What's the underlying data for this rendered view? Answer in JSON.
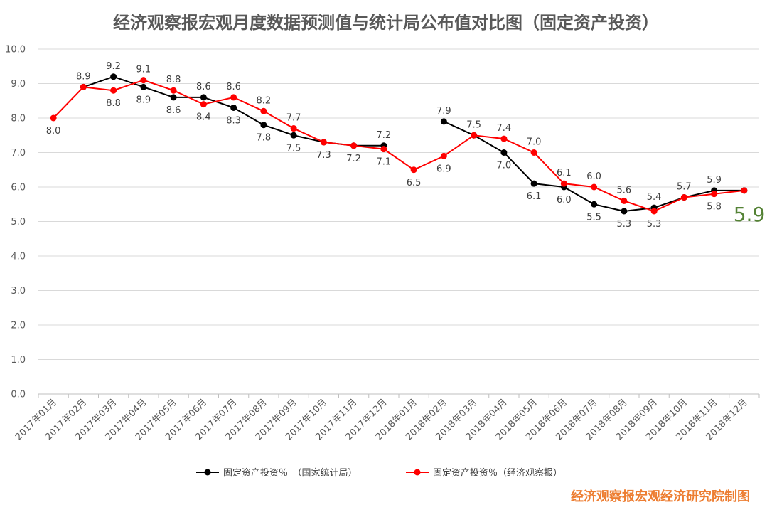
{
  "chart_data": {
    "type": "line",
    "title": "经济观察报宏观月度数据预测值与统计局公布值对比图（固定资产投资）",
    "credit": "经济观察报宏观经济研究院制图",
    "highlight_value": "5.9",
    "ylim": [
      0,
      10
    ],
    "yticks": [
      "0.0",
      "1.0",
      "2.0",
      "3.0",
      "4.0",
      "5.0",
      "6.0",
      "7.0",
      "8.0",
      "9.0",
      "10.0"
    ],
    "grid": true,
    "legend_position": "bottom",
    "categories": [
      "2017年01月",
      "2017年02月",
      "2017年03月",
      "2017年04月",
      "2017年05月",
      "2017年06月",
      "2017年07月",
      "2017年08月",
      "2017年09月",
      "2017年10月",
      "2017年11月",
      "2017年12月",
      "2018年01月",
      "2018年02月",
      "2018年03月",
      "2018年04月",
      "2018年05月",
      "2018年06月",
      "2018年07月",
      "2018年08月",
      "2018年09月",
      "2018年10月",
      "2018年11月",
      "2018年12月"
    ],
    "series": [
      {
        "name": "固定资产投资％　（国家统计局）",
        "color": "#000000",
        "values": [
          null,
          8.9,
          9.2,
          8.9,
          8.6,
          8.6,
          8.3,
          7.8,
          7.5,
          7.3,
          7.2,
          7.2,
          null,
          7.9,
          7.5,
          7.0,
          6.1,
          6.0,
          5.5,
          5.3,
          5.4,
          5.7,
          5.9,
          5.9
        ]
      },
      {
        "name": "固定资产投资％（经济观察报）",
        "color": "#ff0000",
        "values": [
          8.0,
          8.9,
          8.8,
          9.1,
          8.8,
          8.4,
          8.6,
          8.2,
          7.7,
          7.3,
          7.2,
          7.1,
          6.5,
          6.9,
          7.5,
          7.4,
          7.0,
          6.1,
          6.0,
          5.6,
          5.3,
          5.7,
          5.8,
          5.9
        ]
      }
    ],
    "data_labels": [
      {
        "text": "8.0",
        "cat": 0,
        "val": 8.0,
        "pos": "below"
      },
      {
        "text": "8.9",
        "cat": 1,
        "val": 8.9,
        "pos": "above"
      },
      {
        "text": "9.2",
        "cat": 2,
        "val": 9.2,
        "pos": "above"
      },
      {
        "text": "8.8",
        "cat": 2,
        "val": 8.8,
        "pos": "below"
      },
      {
        "text": "9.1",
        "cat": 3,
        "val": 9.1,
        "pos": "above"
      },
      {
        "text": "8.9",
        "cat": 3,
        "val": 8.9,
        "pos": "below"
      },
      {
        "text": "8.8",
        "cat": 4,
        "val": 8.8,
        "pos": "above"
      },
      {
        "text": "8.6",
        "cat": 4,
        "val": 8.6,
        "pos": "below"
      },
      {
        "text": "8.6",
        "cat": 5,
        "val": 8.6,
        "pos": "above"
      },
      {
        "text": "8.4",
        "cat": 5,
        "val": 8.4,
        "pos": "below"
      },
      {
        "text": "8.6",
        "cat": 6,
        "val": 8.6,
        "pos": "above"
      },
      {
        "text": "8.3",
        "cat": 6,
        "val": 8.3,
        "pos": "below"
      },
      {
        "text": "8.2",
        "cat": 7,
        "val": 8.2,
        "pos": "above"
      },
      {
        "text": "7.8",
        "cat": 7,
        "val": 7.8,
        "pos": "below"
      },
      {
        "text": "7.7",
        "cat": 8,
        "val": 7.7,
        "pos": "above"
      },
      {
        "text": "7.5",
        "cat": 8,
        "val": 7.5,
        "pos": "below"
      },
      {
        "text": "7.3",
        "cat": 9,
        "val": 7.3,
        "pos": "below"
      },
      {
        "text": "7.2",
        "cat": 10,
        "val": 7.2,
        "pos": "below"
      },
      {
        "text": "7.2",
        "cat": 11,
        "val": 7.2,
        "pos": "above"
      },
      {
        "text": "7.1",
        "cat": 11,
        "val": 7.1,
        "pos": "below"
      },
      {
        "text": "6.5",
        "cat": 12,
        "val": 6.5,
        "pos": "below"
      },
      {
        "text": "7.9",
        "cat": 13,
        "val": 7.9,
        "pos": "above"
      },
      {
        "text": "6.9",
        "cat": 13,
        "val": 6.9,
        "pos": "below"
      },
      {
        "text": "7.5",
        "cat": 14,
        "val": 7.5,
        "pos": "above"
      },
      {
        "text": "7.4",
        "cat": 15,
        "val": 7.4,
        "pos": "above"
      },
      {
        "text": "7.0",
        "cat": 15,
        "val": 7.0,
        "pos": "below"
      },
      {
        "text": "7.0",
        "cat": 16,
        "val": 7.0,
        "pos": "above"
      },
      {
        "text": "6.1",
        "cat": 16,
        "val": 6.1,
        "pos": "below"
      },
      {
        "text": "6.1",
        "cat": 17,
        "val": 6.1,
        "pos": "above"
      },
      {
        "text": "6.0",
        "cat": 17,
        "val": 6.0,
        "pos": "below"
      },
      {
        "text": "6.0",
        "cat": 18,
        "val": 6.0,
        "pos": "above"
      },
      {
        "text": "5.5",
        "cat": 18,
        "val": 5.5,
        "pos": "below"
      },
      {
        "text": "5.6",
        "cat": 19,
        "val": 5.6,
        "pos": "above"
      },
      {
        "text": "5.3",
        "cat": 19,
        "val": 5.3,
        "pos": "below"
      },
      {
        "text": "5.4",
        "cat": 20,
        "val": 5.4,
        "pos": "above"
      },
      {
        "text": "5.3",
        "cat": 20,
        "val": 5.3,
        "pos": "below"
      },
      {
        "text": "5.7",
        "cat": 21,
        "val": 5.7,
        "pos": "above"
      },
      {
        "text": "5.9",
        "cat": 22,
        "val": 5.9,
        "pos": "above"
      },
      {
        "text": "5.8",
        "cat": 22,
        "val": 5.8,
        "pos": "below"
      }
    ]
  }
}
